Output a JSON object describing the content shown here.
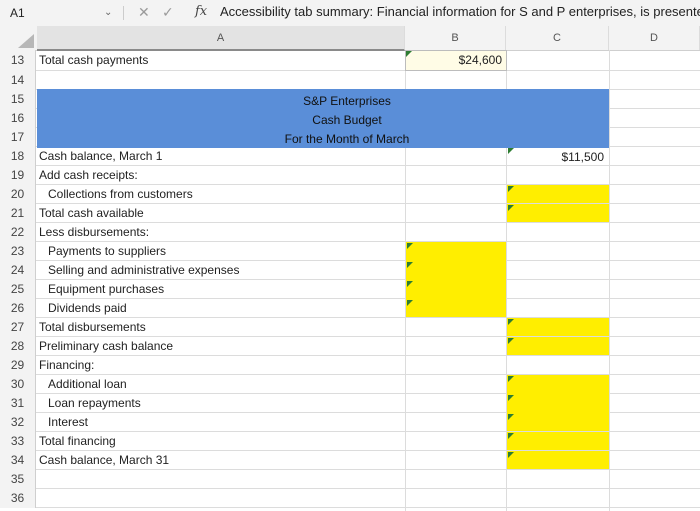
{
  "formula_bar": {
    "cell_ref": "A1",
    "fx_label": "fx",
    "content": "Accessibility tab summary: Financial information for S and P enterprises, is presente"
  },
  "columns": [
    "A",
    "B",
    "C",
    "D"
  ],
  "rows": [
    {
      "num": "13",
      "label": "Total cash payments"
    },
    {
      "num": "14",
      "label": ""
    },
    {
      "num": "15",
      "label": ""
    },
    {
      "num": "16",
      "label": ""
    },
    {
      "num": "17",
      "label": ""
    },
    {
      "num": "18",
      "label": "Cash balance, March 1"
    },
    {
      "num": "19",
      "label": "Add cash receipts:"
    },
    {
      "num": "20",
      "label": "Collections from customers"
    },
    {
      "num": "21",
      "label": "Total cash available"
    },
    {
      "num": "22",
      "label": "Less disbursements:"
    },
    {
      "num": "23",
      "label": "Payments to suppliers"
    },
    {
      "num": "24",
      "label": "Selling and administrative expenses"
    },
    {
      "num": "25",
      "label": "Equipment purchases"
    },
    {
      "num": "26",
      "label": "Dividends paid"
    },
    {
      "num": "27",
      "label": "Total disbursements"
    },
    {
      "num": "28",
      "label": "Preliminary cash balance"
    },
    {
      "num": "29",
      "label": "Financing:"
    },
    {
      "num": "30",
      "label": "Additional loan"
    },
    {
      "num": "31",
      "label": "Loan repayments"
    },
    {
      "num": "32",
      "label": "Interest"
    },
    {
      "num": "33",
      "label": "Total financing"
    },
    {
      "num": "34",
      "label": "Cash balance, March 31"
    },
    {
      "num": "35",
      "label": ""
    },
    {
      "num": "36",
      "label": ""
    }
  ],
  "header_block": {
    "line1": "S&P Enterprises",
    "line2": "Cash Budget",
    "line3": "For the Month of March"
  },
  "values": {
    "total_cash_payments": "$24,600",
    "cash_balance_march1": "$11,500"
  },
  "colors": {
    "header_blue": "#5a8ed8",
    "input_yellow": "#ffee00",
    "marker_green": "#2e7d32"
  }
}
